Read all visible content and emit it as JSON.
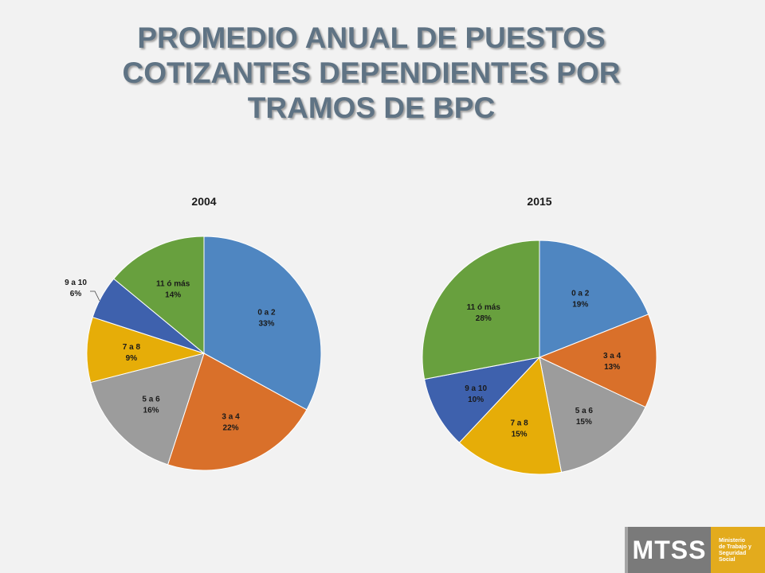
{
  "title": {
    "line1": "PROMEDIO ANUAL DE PUESTOS",
    "line2": "COTIZANTES DEPENDIENTES POR",
    "line3": "TRAMOS DE BPC"
  },
  "chart_data": [
    {
      "type": "pie",
      "title": "2004",
      "slices": [
        {
          "label": "0 a 2",
          "value": 33,
          "pct": "33%",
          "color": "#4f86c1"
        },
        {
          "label": "3 a 4",
          "value": 22,
          "pct": "22%",
          "color": "#d9702a"
        },
        {
          "label": "5 a 6",
          "value": 16,
          "pct": "16%",
          "color": "#9c9c9c"
        },
        {
          "label": "7 a 8",
          "value": 9,
          "pct": "9%",
          "color": "#e6ad08"
        },
        {
          "label": "9 a 10",
          "value": 6,
          "pct": "6%",
          "color": "#3e61ad"
        },
        {
          "label": "11 ó más",
          "value": 14,
          "pct": "14%",
          "color": "#68a03e"
        }
      ]
    },
    {
      "type": "pie",
      "title": "2015",
      "slices": [
        {
          "label": "0 a 2",
          "value": 19,
          "pct": "19%",
          "color": "#4f86c1"
        },
        {
          "label": "3 a 4",
          "value": 13,
          "pct": "13%",
          "color": "#d9702a"
        },
        {
          "label": "5 a 6",
          "value": 15,
          "pct": "15%",
          "color": "#9c9c9c"
        },
        {
          "label": "7 a 8",
          "value": 15,
          "pct": "15%",
          "color": "#e6ad08"
        },
        {
          "label": "9 a 10",
          "value": 10,
          "pct": "10%",
          "color": "#3e61ad"
        },
        {
          "label": "11 ó más",
          "value": 28,
          "pct": "28%",
          "color": "#68a03e"
        }
      ]
    }
  ],
  "logo": {
    "acronym": "MTSS",
    "line1": "Ministerio",
    "line2": "de Trabajo y",
    "line3": "Seguridad",
    "line4": "Social"
  }
}
